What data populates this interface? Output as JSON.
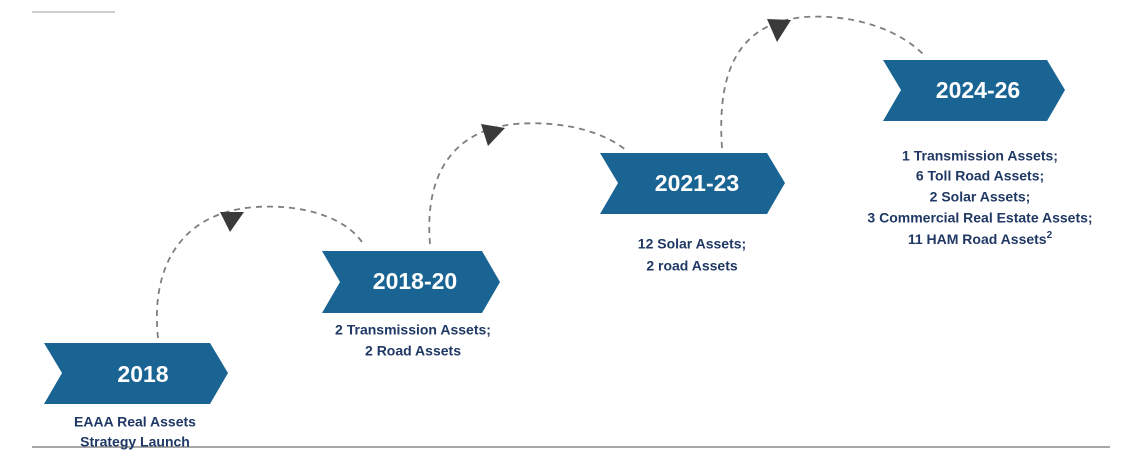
{
  "milestones": [
    {
      "label": "2018",
      "description": [
        "EAAA Real Assets",
        "Strategy Launch"
      ]
    },
    {
      "label": "2018-20",
      "description": [
        "2 Transmission Assets;",
        "2 Road Assets"
      ]
    },
    {
      "label": "2021-23",
      "description": [
        "12 Solar Assets;",
        "2 road Assets"
      ]
    },
    {
      "label": "2024-26",
      "description": [
        "1 Transmission Assets;",
        "6 Toll Road Assets;",
        "2 Solar Assets;",
        "3 Commercial Real Estate Assets;",
        "11 HAM Road Assets"
      ],
      "footnote": "2"
    }
  ]
}
